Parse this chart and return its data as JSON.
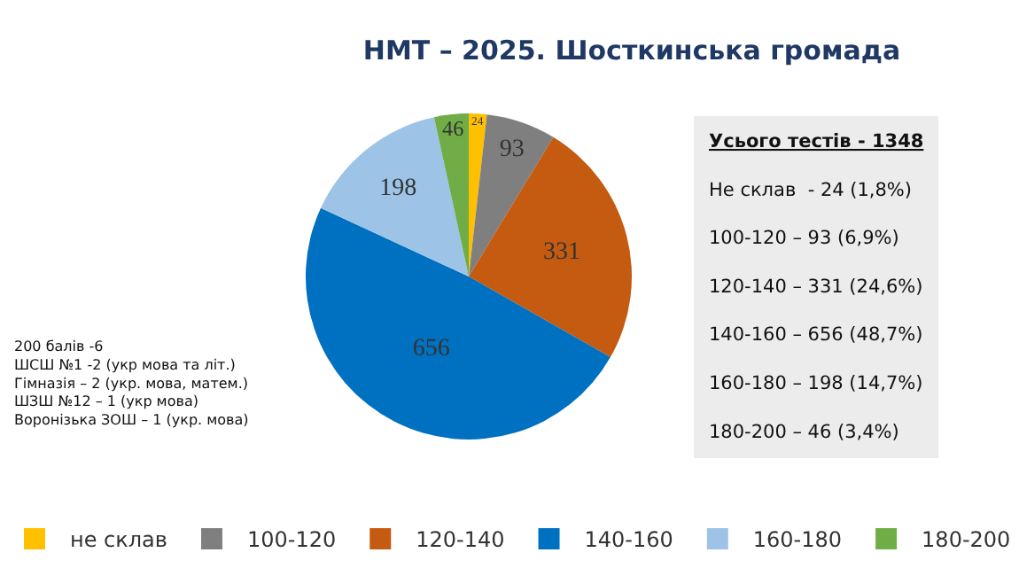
{
  "chart_data": {
    "type": "pie",
    "title": "НМТ – 2025. Шосткинська громада",
    "categories": [
      "не склав",
      "100-120",
      "120-140",
      "140-160",
      "160-180",
      "180-200"
    ],
    "values": [
      24,
      93,
      331,
      656,
      198,
      46
    ],
    "colors": [
      "#ffc000",
      "#7f7f7f",
      "#c55a11",
      "#0070c0",
      "#9dc3e6",
      "#70ad47"
    ],
    "data_labels": true,
    "legend": "bottom",
    "annotations": [
      "200 балів -6\nШСШ №1 -2 (укр мова та літ.)\nГімназія – 2 (укр. мова, матем.)\nШЗШ №12 – 1 (укр мова)\nВоронізька ЗОШ – 1 (укр. мова)",
      "Усього тестів - 1348\nНе склав  - 24 (1,8%)\n100-120 – 93 (6,9%)\n120-140 – 331 (24,6%)\n140-160 – 656 (48,7%)\n160-180 – 198 (14,7%)\n180-200 – 46 (3,4%)"
    ]
  }
}
